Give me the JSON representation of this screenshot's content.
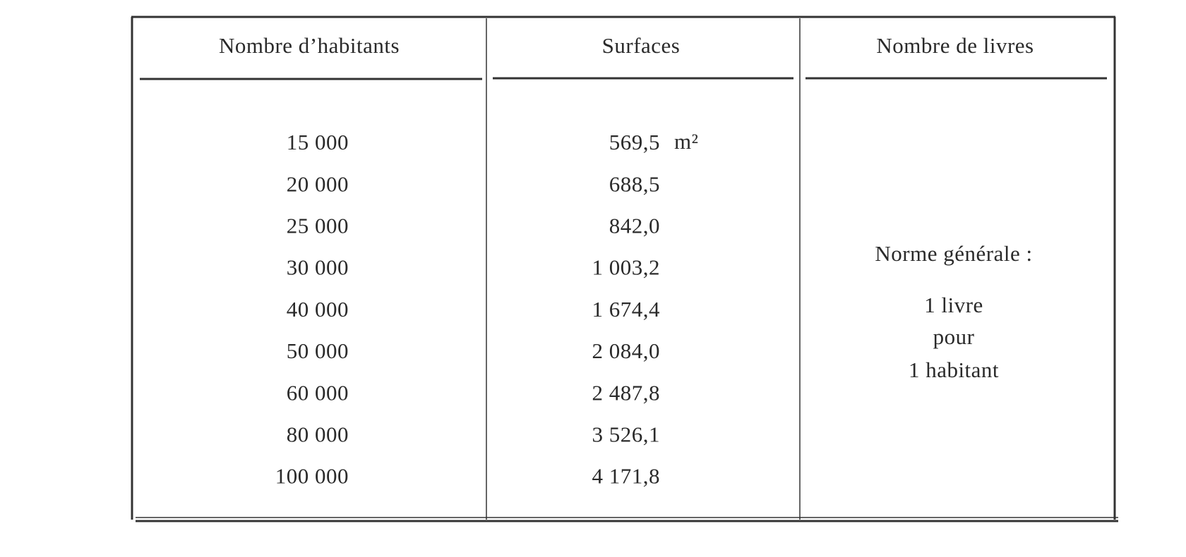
{
  "table": {
    "header": [
      "Nombre d’habitants",
      "Surfaces",
      "Nombre de livres"
    ],
    "rows": [
      [
        "15 000",
        "569,5"
      ],
      [
        "20 000",
        "688,5"
      ],
      [
        "25 000",
        "842,0"
      ],
      [
        "30 000",
        "1 003,2"
      ],
      [
        "40 000",
        "1 674,4"
      ],
      [
        "50 000",
        "2 084,0"
      ],
      [
        "60 000",
        "2 487,8"
      ],
      [
        "80 000",
        "3 526,1"
      ],
      [
        "100 000",
        "4 171,8"
      ]
    ],
    "unit": "m²",
    "note": {
      "title": "Norme générale :",
      "lines": [
        "1 livre",
        "pour",
        "1 habitant"
      ]
    }
  }
}
